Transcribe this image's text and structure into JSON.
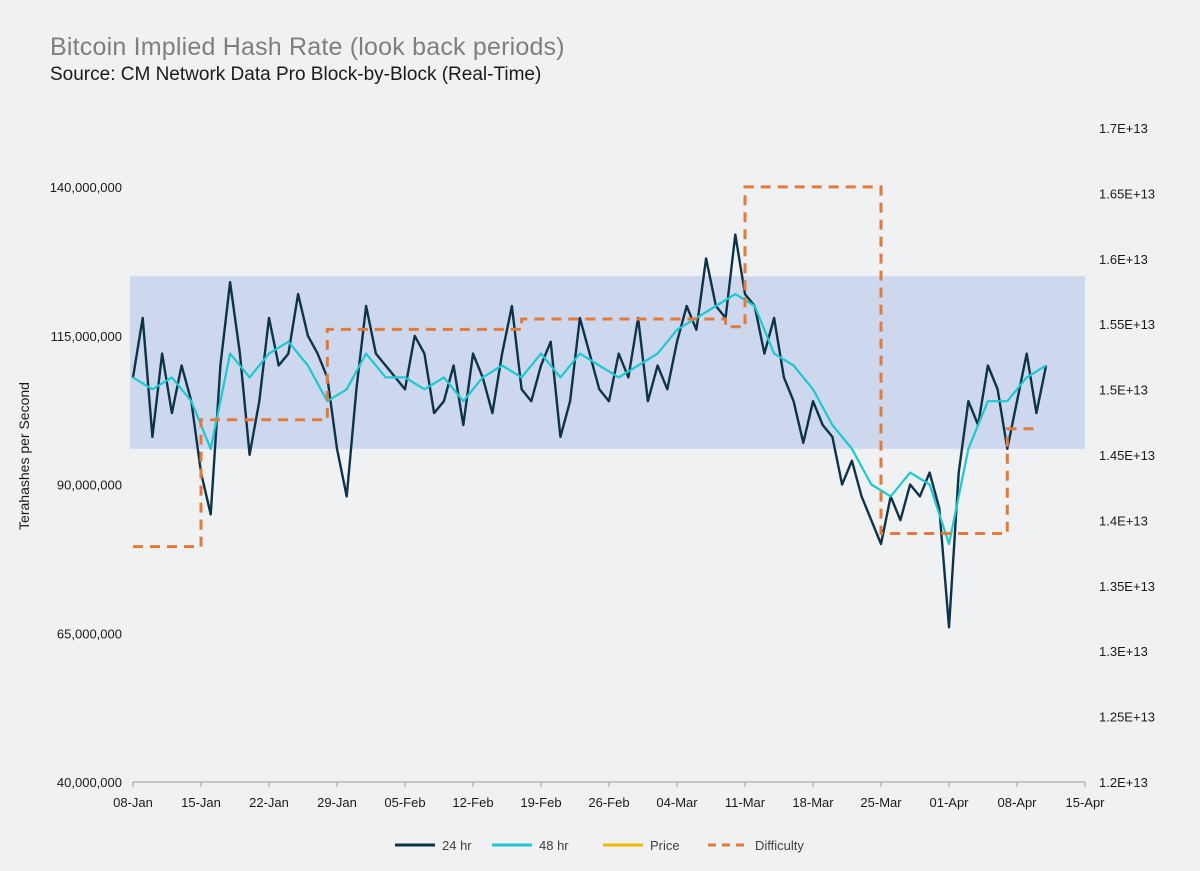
{
  "title": "Bitcoin Implied Hash Rate (look back periods)",
  "subtitle": "Source: CM Network Data Pro Block-by-Block (Real-Time)",
  "chart_data": {
    "type": "line",
    "ylabel": "Terahashes per Second",
    "y_left": {
      "min": 40000000,
      "max": 140000000,
      "ticks": [
        "40,000,000",
        "65,000,000",
        "90,000,000",
        "115,000,000",
        "140,000,000"
      ]
    },
    "y_right": {
      "min": 12000000000000.0,
      "max": 17000000000000.0,
      "ticks": [
        "1.2E+13",
        "1.25E+13",
        "1.3E+13",
        "1.35E+13",
        "1.4E+13",
        "1.45E+13",
        "1.5E+13",
        "1.55E+13",
        "1.6E+13",
        "1.65E+13",
        "1.7E+13"
      ]
    },
    "x_ticks": [
      "08-Jan",
      "15-Jan",
      "22-Jan",
      "29-Jan",
      "05-Feb",
      "12-Feb",
      "19-Feb",
      "26-Feb",
      "04-Mar",
      "11-Mar",
      "18-Mar",
      "25-Mar",
      "01-Apr",
      "08-Apr",
      "15-Apr"
    ],
    "band": {
      "y_low": 96000000,
      "y_high": 125000000
    },
    "series": [
      {
        "name": "24 hr",
        "color": "#0d3349",
        "axis": "left",
        "x_days": [
          0,
          1,
          2,
          3,
          4,
          5,
          6,
          7,
          8,
          9,
          10,
          11,
          12,
          13,
          14,
          15,
          16,
          17,
          18,
          19,
          20,
          21,
          22,
          23,
          24,
          25,
          26,
          27,
          28,
          29,
          30,
          31,
          32,
          33,
          34,
          35,
          36,
          37,
          38,
          39,
          40,
          41,
          42,
          43,
          44,
          45,
          46,
          47,
          48,
          49,
          50,
          51,
          52,
          53,
          54,
          55,
          56,
          57,
          58,
          59,
          60,
          61,
          62,
          63,
          64,
          65,
          66,
          67,
          68,
          69,
          70,
          71,
          72,
          73,
          74,
          75,
          76,
          77,
          78,
          79,
          80,
          81,
          82,
          83,
          84,
          85,
          86,
          87,
          88,
          89,
          90,
          91,
          92,
          93,
          94
        ],
        "values": [
          108,
          118,
          98,
          112,
          102,
          110,
          104,
          92,
          85,
          110,
          124,
          112,
          95,
          104,
          118,
          110,
          112,
          122,
          115,
          112,
          108,
          96,
          88,
          106,
          120,
          112,
          110,
          108,
          106,
          115,
          112,
          102,
          104,
          110,
          100,
          112,
          108,
          102,
          112,
          120,
          106,
          104,
          110,
          114,
          98,
          104,
          118,
          112,
          106,
          104,
          112,
          108,
          118,
          104,
          110,
          106,
          114,
          120,
          116,
          128,
          120,
          118,
          132,
          122,
          120,
          112,
          118,
          108,
          104,
          97,
          104,
          100,
          98,
          90,
          94,
          88,
          84,
          80,
          88,
          84,
          90,
          88,
          92,
          86,
          66,
          92,
          104,
          100,
          110,
          106,
          96,
          104,
          112,
          102,
          110
        ]
      },
      {
        "name": "48 hr",
        "color": "#1ec8d0",
        "axis": "left",
        "x_days": [
          0,
          2,
          4,
          6,
          8,
          10,
          12,
          14,
          16,
          18,
          20,
          22,
          24,
          26,
          28,
          30,
          32,
          34,
          36,
          38,
          40,
          42,
          44,
          46,
          48,
          50,
          52,
          54,
          56,
          58,
          60,
          62,
          64,
          66,
          68,
          70,
          72,
          74,
          76,
          78,
          80,
          82,
          84,
          86,
          88,
          90,
          92,
          94
        ],
        "values": [
          108,
          106,
          108,
          104,
          96,
          112,
          108,
          112,
          114,
          110,
          104,
          106,
          112,
          108,
          108,
          106,
          108,
          104,
          108,
          110,
          108,
          112,
          108,
          112,
          110,
          108,
          110,
          112,
          116,
          118,
          120,
          122,
          120,
          112,
          110,
          106,
          100,
          96,
          90,
          88,
          92,
          90,
          80,
          96,
          104,
          104,
          108,
          110
        ]
      },
      {
        "name": "Price",
        "color": "#f5b800",
        "axis": "right",
        "x_days": [],
        "values": []
      },
      {
        "name": "Difficulty",
        "color": "#e07b3a",
        "axis": "right",
        "dashed": true,
        "steps": [
          {
            "from": 0,
            "to": 7,
            "value": 13800000000000.0
          },
          {
            "from": 7,
            "to": 20,
            "value": 14770000000000.0
          },
          {
            "from": 20,
            "to": 40,
            "value": 15460000000000.0
          },
          {
            "from": 40,
            "to": 61,
            "value": 15540000000000.0
          },
          {
            "from": 61,
            "to": 63,
            "value": 15480000000000.0
          },
          {
            "from": 63,
            "to": 77,
            "value": 16550000000000.0
          },
          {
            "from": 77,
            "to": 90,
            "value": 13900000000000.0
          },
          {
            "from": 90,
            "to": 93,
            "value": 14700000000000.0
          }
        ]
      }
    ],
    "legend": {
      "position": "bottom",
      "items": [
        "24 hr",
        "48 hr",
        "Price",
        "Difficulty"
      ]
    },
    "grid": false
  }
}
